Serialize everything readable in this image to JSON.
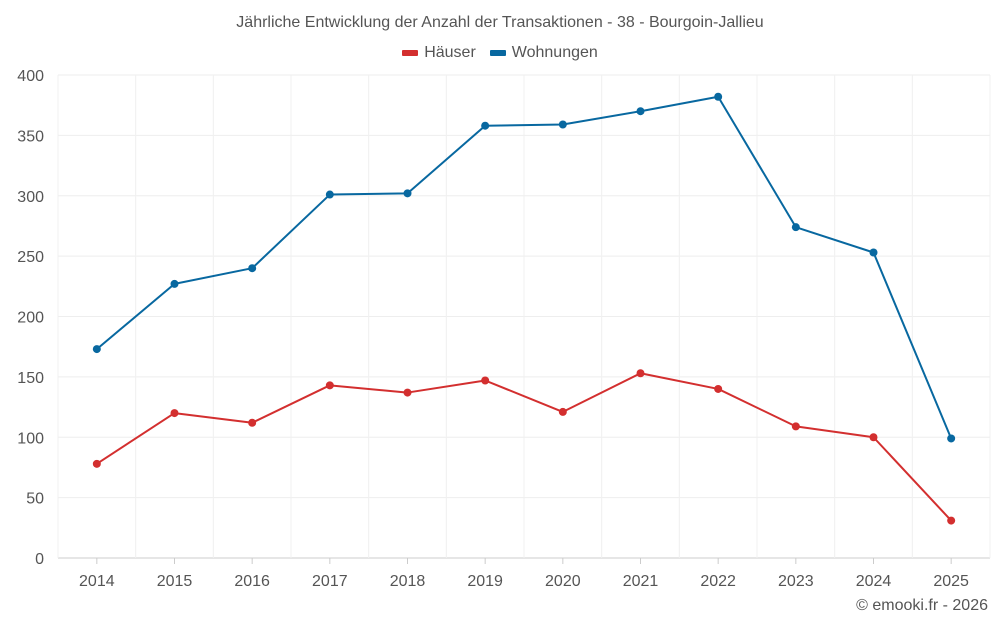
{
  "chart_data": {
    "type": "line",
    "title": "Jährliche Entwicklung der Anzahl der Transaktionen - 38 - Bourgoin-Jallieu",
    "xlabel": "",
    "ylabel": "",
    "categories": [
      "2014",
      "2015",
      "2016",
      "2017",
      "2018",
      "2019",
      "2020",
      "2021",
      "2022",
      "2023",
      "2024",
      "2025"
    ],
    "ylim": [
      0,
      400
    ],
    "yticks": [
      0,
      50,
      100,
      150,
      200,
      250,
      300,
      350,
      400
    ],
    "grid": true,
    "legend_position": "top-center",
    "series": [
      {
        "name": "Häuser",
        "color": "#d32f2f",
        "values": [
          78,
          120,
          112,
          143,
          137,
          147,
          121,
          153,
          140,
          109,
          100,
          31
        ]
      },
      {
        "name": "Wohnungen",
        "color": "#0868a0",
        "values": [
          173,
          227,
          240,
          301,
          302,
          358,
          359,
          370,
          382,
          274,
          253,
          99
        ]
      }
    ]
  },
  "credit": "© emooki.fr - 2026"
}
